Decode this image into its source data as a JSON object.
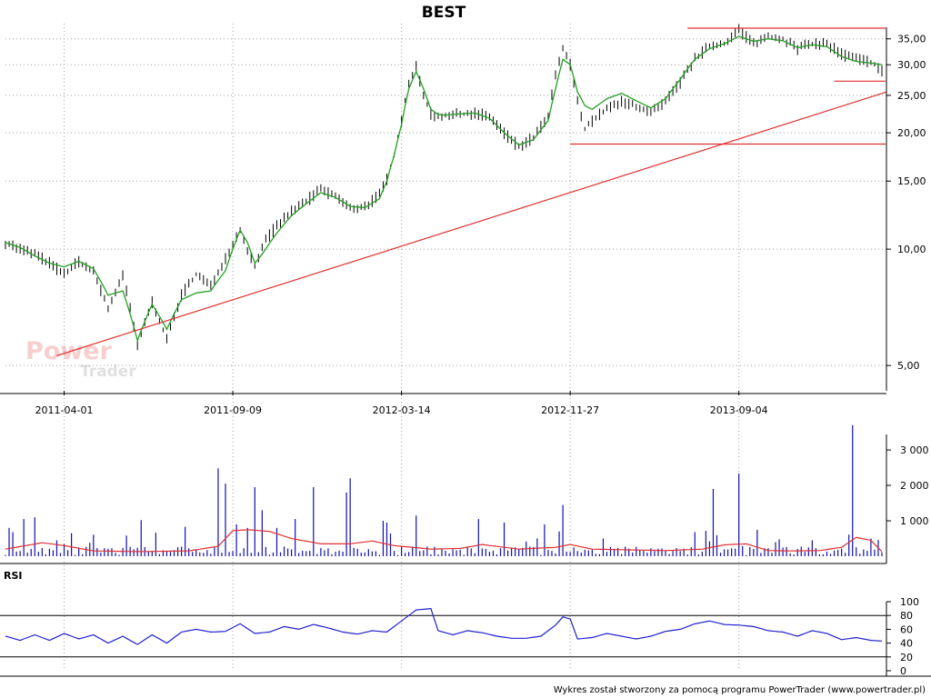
{
  "title": "BEST",
  "footer": "Wykres został stworzony za pomocą programu PowerTrader (www.powertrader.pl)",
  "watermark": {
    "line1": "Power",
    "line2": "Trader"
  },
  "colors": {
    "price_bar": "#000000",
    "moving_average": "#22a022",
    "trendline": "#e03030",
    "volume_bar": "#1010b0",
    "volume_average": "#e03030",
    "rsi_line": "#2020d0",
    "grid": "#a0a0a0",
    "watermark": "#f4b8b8"
  },
  "chart_data": [
    {
      "id": "price",
      "type": "line",
      "title": "BEST",
      "yscale": "log",
      "ylim": [
        4.3,
        37.5
      ],
      "yticks": [
        "5,00",
        "10,00",
        "15,00",
        "20,00",
        "25,00",
        "30,00",
        "35,00"
      ],
      "ytick_values": [
        5,
        10,
        15,
        20,
        25,
        30,
        35
      ],
      "date_ticks": [
        "2011-04-01",
        "2011-09-09",
        "2012-03-14",
        "2012-11-27",
        "2013-09-04"
      ],
      "date_tick_index": [
        16,
        62,
        108,
        154,
        200
      ],
      "n_periods": 240,
      "close_anchors": [
        [
          0,
          10.4
        ],
        [
          4,
          10.0
        ],
        [
          8,
          9.7
        ],
        [
          12,
          9.2
        ],
        [
          16,
          8.6
        ],
        [
          20,
          9.3
        ],
        [
          24,
          8.7
        ],
        [
          28,
          7.0
        ],
        [
          32,
          8.5
        ],
        [
          36,
          5.6
        ],
        [
          40,
          7.3
        ],
        [
          44,
          5.8
        ],
        [
          48,
          7.6
        ],
        [
          52,
          8.6
        ],
        [
          56,
          8.0
        ],
        [
          60,
          9.5
        ],
        [
          64,
          11.2
        ],
        [
          66,
          10.0
        ],
        [
          68,
          9.0
        ],
        [
          70,
          10.2
        ],
        [
          74,
          11.5
        ],
        [
          78,
          12.5
        ],
        [
          82,
          13.3
        ],
        [
          86,
          14.3
        ],
        [
          90,
          13.7
        ],
        [
          94,
          12.7
        ],
        [
          98,
          12.9
        ],
        [
          102,
          13.8
        ],
        [
          104,
          15.2
        ],
        [
          106,
          17.5
        ],
        [
          108,
          21.5
        ],
        [
          110,
          27.0
        ],
        [
          112,
          29.5
        ],
        [
          114,
          25.0
        ],
        [
          116,
          22.5
        ],
        [
          118,
          22.0
        ],
        [
          120,
          22.2
        ],
        [
          124,
          22.3
        ],
        [
          128,
          22.5
        ],
        [
          132,
          22.0
        ],
        [
          136,
          20.0
        ],
        [
          140,
          18.4
        ],
        [
          144,
          19.4
        ],
        [
          148,
          22.0
        ],
        [
          150,
          28.0
        ],
        [
          152,
          33.0
        ],
        [
          154,
          30.0
        ],
        [
          156,
          24.0
        ],
        [
          158,
          20.5
        ],
        [
          160,
          21.5
        ],
        [
          164,
          23.0
        ],
        [
          168,
          24.0
        ],
        [
          172,
          23.5
        ],
        [
          176,
          22.5
        ],
        [
          180,
          24.0
        ],
        [
          184,
          27.0
        ],
        [
          188,
          31.0
        ],
        [
          192,
          33.5
        ],
        [
          196,
          34.0
        ],
        [
          200,
          37.0
        ],
        [
          204,
          34.0
        ],
        [
          208,
          35.5
        ],
        [
          212,
          35.0
        ],
        [
          216,
          33.0
        ],
        [
          220,
          34.0
        ],
        [
          224,
          34.0
        ],
        [
          228,
          32.0
        ],
        [
          232,
          31.0
        ],
        [
          236,
          30.5
        ],
        [
          239,
          29.0
        ]
      ],
      "ma_anchors": [
        [
          0,
          10.4
        ],
        [
          4,
          10.1
        ],
        [
          8,
          9.6
        ],
        [
          12,
          9.2
        ],
        [
          16,
          9.0
        ],
        [
          20,
          9.3
        ],
        [
          24,
          8.9
        ],
        [
          28,
          7.6
        ],
        [
          32,
          7.8
        ],
        [
          36,
          5.8
        ],
        [
          40,
          7.2
        ],
        [
          44,
          6.2
        ],
        [
          48,
          7.4
        ],
        [
          52,
          7.7
        ],
        [
          56,
          7.8
        ],
        [
          60,
          8.8
        ],
        [
          64,
          11.2
        ],
        [
          66,
          10.4
        ],
        [
          68,
          9.2
        ],
        [
          70,
          9.7
        ],
        [
          74,
          11.0
        ],
        [
          78,
          12.2
        ],
        [
          82,
          13.1
        ],
        [
          86,
          14.0
        ],
        [
          90,
          13.6
        ],
        [
          94,
          12.9
        ],
        [
          98,
          12.8
        ],
        [
          102,
          13.5
        ],
        [
          104,
          15.0
        ],
        [
          106,
          17.5
        ],
        [
          108,
          21.0
        ],
        [
          110,
          26.0
        ],
        [
          112,
          28.8
        ],
        [
          114,
          26.0
        ],
        [
          116,
          23.0
        ],
        [
          118,
          22.3
        ],
        [
          120,
          22.2
        ],
        [
          124,
          22.4
        ],
        [
          128,
          22.5
        ],
        [
          132,
          21.8
        ],
        [
          136,
          20.0
        ],
        [
          140,
          18.6
        ],
        [
          144,
          19.2
        ],
        [
          148,
          21.5
        ],
        [
          150,
          26.0
        ],
        [
          152,
          31.0
        ],
        [
          154,
          30.0
        ],
        [
          156,
          25.5
        ],
        [
          158,
          23.5
        ],
        [
          160,
          23.0
        ],
        [
          164,
          24.5
        ],
        [
          168,
          25.3
        ],
        [
          172,
          24.2
        ],
        [
          176,
          23.2
        ],
        [
          180,
          24.5
        ],
        [
          184,
          27.5
        ],
        [
          188,
          31.0
        ],
        [
          192,
          33.0
        ],
        [
          196,
          34.0
        ],
        [
          200,
          35.5
        ],
        [
          204,
          34.5
        ],
        [
          208,
          35.0
        ],
        [
          212,
          34.6
        ],
        [
          216,
          33.2
        ],
        [
          220,
          33.8
        ],
        [
          224,
          33.4
        ],
        [
          228,
          31.5
        ],
        [
          232,
          30.6
        ],
        [
          236,
          30.3
        ],
        [
          239,
          30.0
        ]
      ],
      "series": [
        {
          "id": "ohlc",
          "values": "close_anchors"
        },
        {
          "id": "moving-average",
          "values": "ma_anchors"
        }
      ],
      "annotations": [
        {
          "id": "trendline",
          "kind": "line",
          "from": [
            14,
            5.3
          ],
          "to": [
            240,
            25.5
          ]
        },
        {
          "id": "resistance-high",
          "kind": "hline",
          "y": 37.3,
          "x_from": 186,
          "x_to": 240
        },
        {
          "id": "support-mid",
          "kind": "hline",
          "y": 18.7,
          "x_from": 154,
          "x_to": 240
        },
        {
          "id": "support-short",
          "kind": "hline",
          "y": 27.2,
          "x_from": 226,
          "x_to": 240
        }
      ]
    },
    {
      "id": "volume",
      "type": "bar",
      "ylim": [
        0,
        3900
      ],
      "yticks": [
        "1 000",
        "2 000",
        "3 000"
      ],
      "ytick_values": [
        1000,
        2000,
        3000
      ],
      "baseline_volume": 110,
      "spikes": [
        [
          1,
          800
        ],
        [
          5,
          1050
        ],
        [
          8,
          1100
        ],
        [
          14,
          450
        ],
        [
          18,
          650
        ],
        [
          23,
          380
        ],
        [
          37,
          1020
        ],
        [
          49,
          830
        ],
        [
          58,
          2480
        ],
        [
          60,
          2050
        ],
        [
          63,
          900
        ],
        [
          66,
          800
        ],
        [
          68,
          1950
        ],
        [
          70,
          1300
        ],
        [
          74,
          800
        ],
        [
          79,
          1050
        ],
        [
          84,
          1950
        ],
        [
          93,
          1800
        ],
        [
          94,
          2200
        ],
        [
          103,
          1000
        ],
        [
          104,
          950
        ],
        [
          112,
          1150
        ],
        [
          129,
          1050
        ],
        [
          136,
          950
        ],
        [
          147,
          900
        ],
        [
          152,
          1450
        ],
        [
          193,
          1900
        ],
        [
          200,
          2330
        ],
        [
          220,
          450
        ],
        [
          231,
          3700
        ],
        [
          236,
          500
        ]
      ],
      "ma_anchors": [
        [
          0,
          200
        ],
        [
          10,
          380
        ],
        [
          16,
          300
        ],
        [
          24,
          150
        ],
        [
          36,
          130
        ],
        [
          50,
          150
        ],
        [
          58,
          280
        ],
        [
          62,
          720
        ],
        [
          66,
          750
        ],
        [
          72,
          700
        ],
        [
          78,
          500
        ],
        [
          86,
          350
        ],
        [
          94,
          350
        ],
        [
          100,
          430
        ],
        [
          106,
          300
        ],
        [
          116,
          200
        ],
        [
          124,
          220
        ],
        [
          130,
          330
        ],
        [
          140,
          200
        ],
        [
          150,
          250
        ],
        [
          154,
          330
        ],
        [
          160,
          200
        ],
        [
          170,
          180
        ],
        [
          180,
          160
        ],
        [
          190,
          200
        ],
        [
          196,
          320
        ],
        [
          202,
          350
        ],
        [
          208,
          160
        ],
        [
          214,
          150
        ],
        [
          222,
          160
        ],
        [
          228,
          250
        ],
        [
          232,
          530
        ],
        [
          236,
          450
        ],
        [
          240,
          20
        ]
      ]
    },
    {
      "id": "rsi",
      "type": "line",
      "title": "RSI",
      "ylim": [
        0,
        100
      ],
      "yticks": [
        "0",
        "20",
        "40",
        "60",
        "80",
        "100"
      ],
      "ytick_values": [
        0,
        20,
        40,
        60,
        80,
        100
      ],
      "guide_levels": [
        20,
        80
      ],
      "anchors": [
        [
          0,
          50
        ],
        [
          4,
          44
        ],
        [
          8,
          52
        ],
        [
          12,
          44
        ],
        [
          16,
          54
        ],
        [
          20,
          46
        ],
        [
          24,
          52
        ],
        [
          28,
          40
        ],
        [
          32,
          50
        ],
        [
          36,
          38
        ],
        [
          40,
          52
        ],
        [
          44,
          40
        ],
        [
          48,
          56
        ],
        [
          52,
          60
        ],
        [
          56,
          56
        ],
        [
          60,
          57
        ],
        [
          64,
          68
        ],
        [
          68,
          54
        ],
        [
          72,
          56
        ],
        [
          76,
          64
        ],
        [
          80,
          60
        ],
        [
          84,
          67
        ],
        [
          88,
          62
        ],
        [
          92,
          56
        ],
        [
          96,
          53
        ],
        [
          100,
          58
        ],
        [
          104,
          56
        ],
        [
          108,
          72
        ],
        [
          112,
          88
        ],
        [
          116,
          90
        ],
        [
          118,
          58
        ],
        [
          122,
          52
        ],
        [
          126,
          58
        ],
        [
          130,
          55
        ],
        [
          134,
          50
        ],
        [
          138,
          47
        ],
        [
          142,
          47
        ],
        [
          146,
          50
        ],
        [
          150,
          66
        ],
        [
          152,
          78
        ],
        [
          154,
          75
        ],
        [
          156,
          46
        ],
        [
          160,
          48
        ],
        [
          164,
          54
        ],
        [
          168,
          50
        ],
        [
          172,
          46
        ],
        [
          176,
          50
        ],
        [
          180,
          57
        ],
        [
          184,
          60
        ],
        [
          188,
          68
        ],
        [
          192,
          72
        ],
        [
          196,
          67
        ],
        [
          200,
          66
        ],
        [
          204,
          64
        ],
        [
          208,
          58
        ],
        [
          212,
          56
        ],
        [
          216,
          50
        ],
        [
          220,
          58
        ],
        [
          224,
          54
        ],
        [
          228,
          45
        ],
        [
          232,
          48
        ],
        [
          236,
          44
        ],
        [
          239,
          43
        ]
      ]
    }
  ]
}
